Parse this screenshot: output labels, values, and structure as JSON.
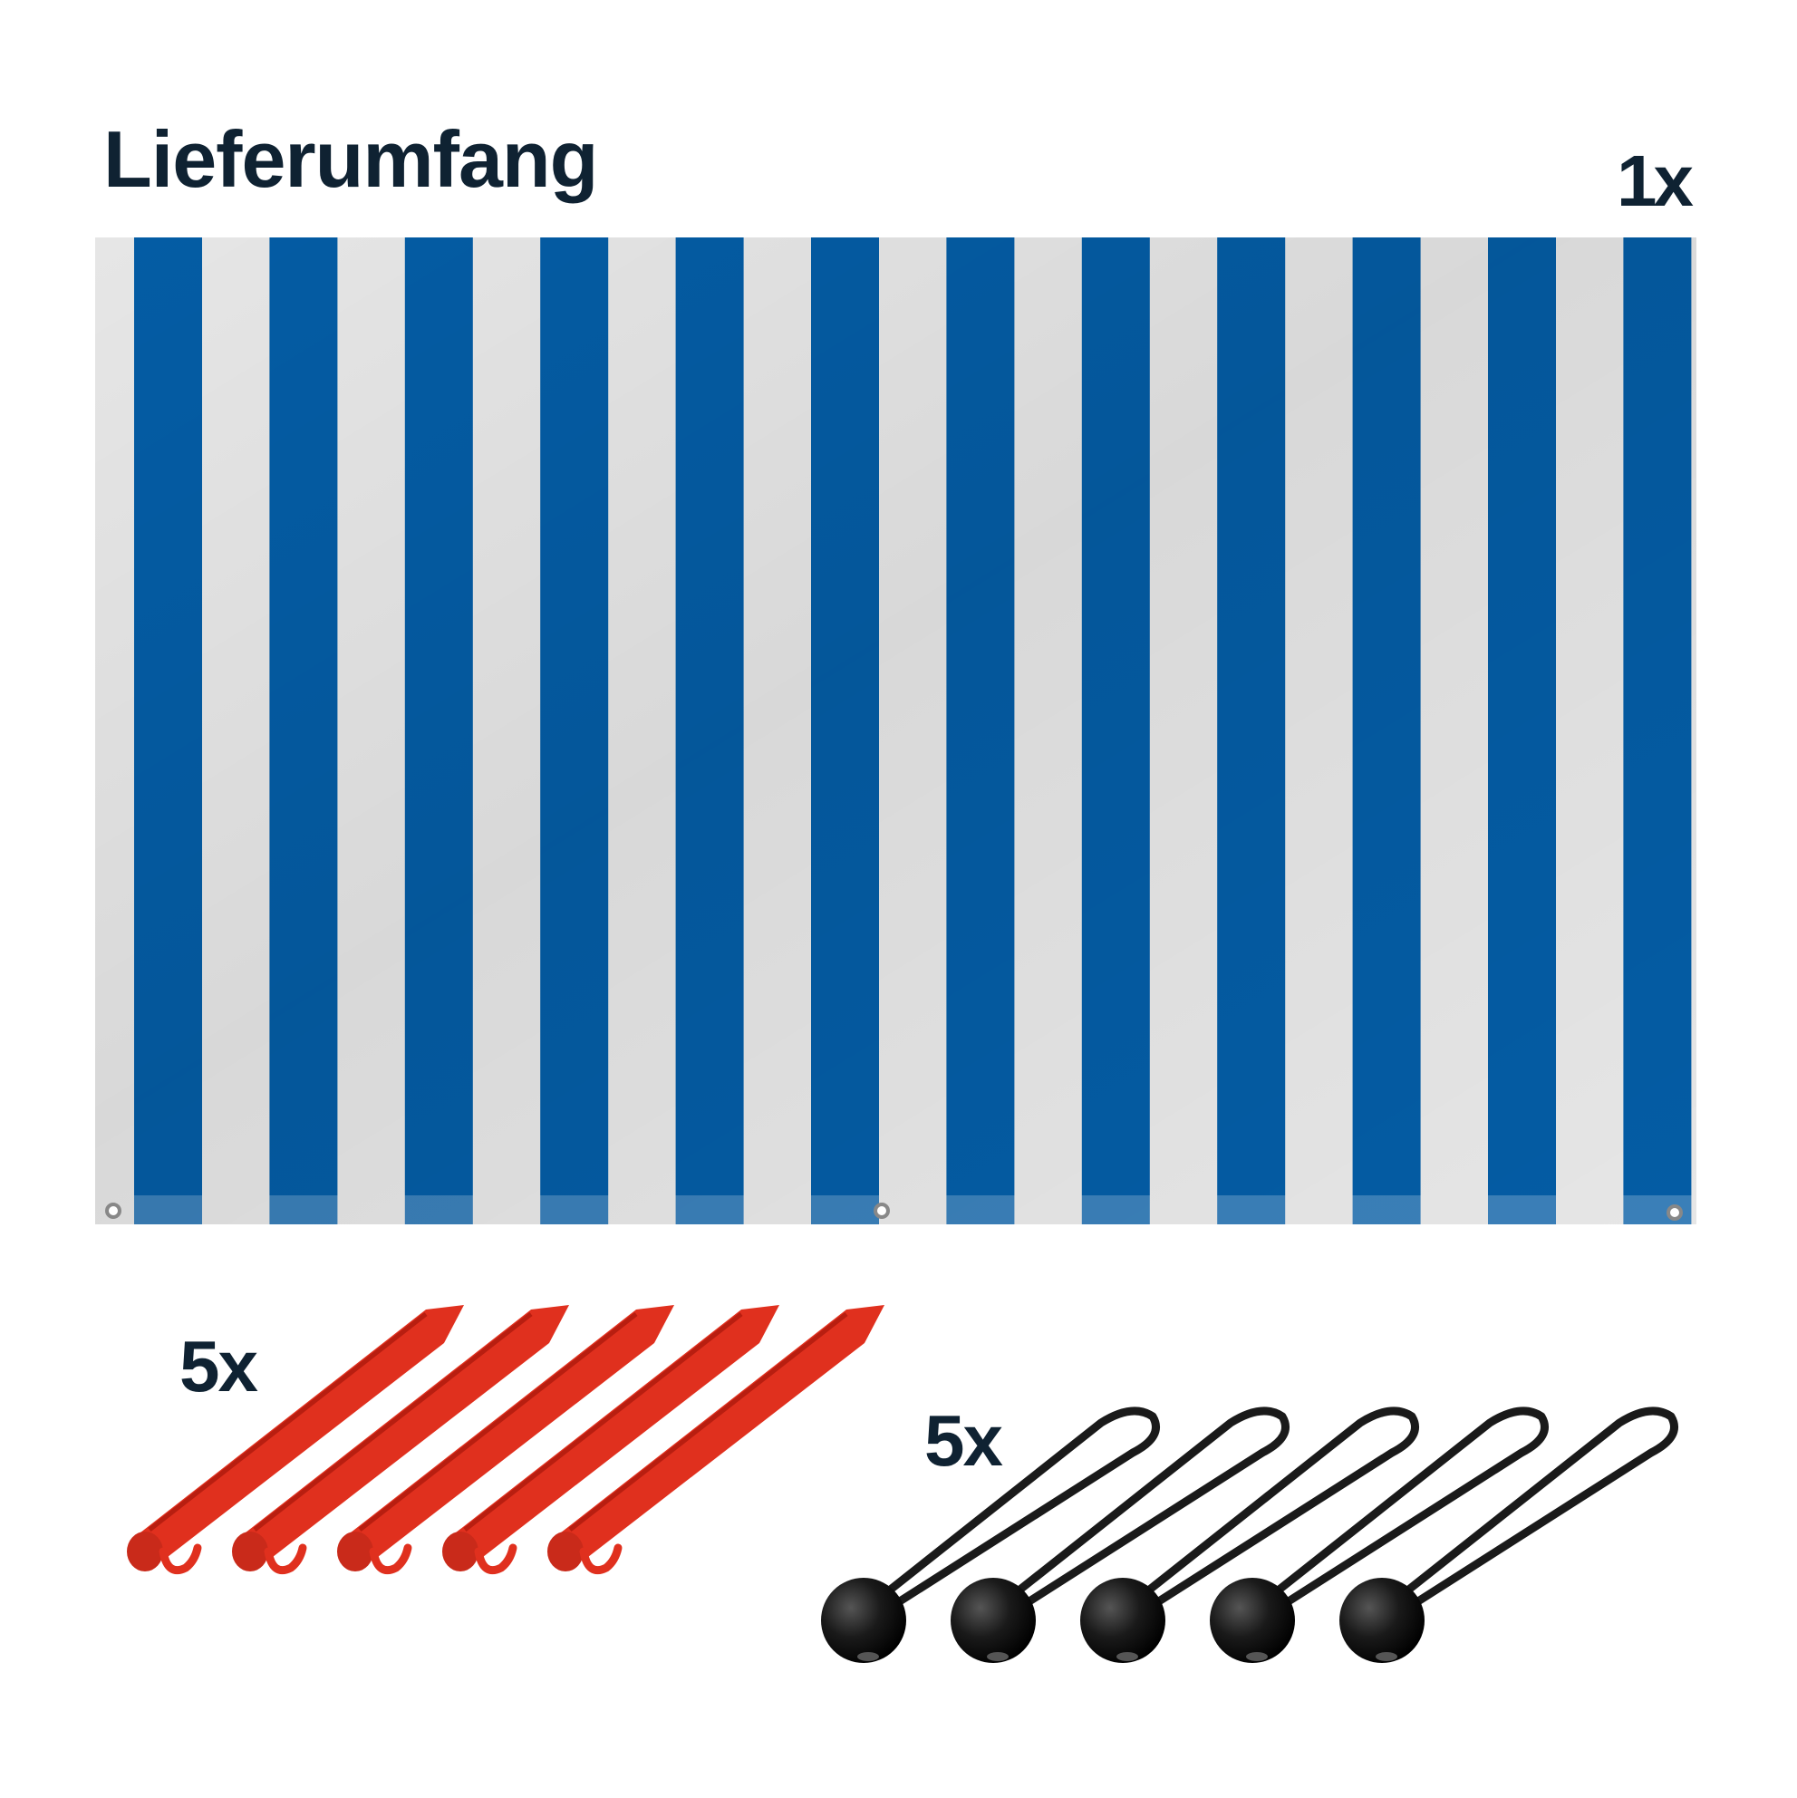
{
  "title": "Lieferumfang",
  "items": [
    {
      "name": "flag-banner",
      "quantity": "1x",
      "stripe_count": 12
    },
    {
      "name": "tent-pegs",
      "quantity": "5x",
      "count": 5
    },
    {
      "name": "ball-bungees",
      "quantity": "5x",
      "count": 5
    }
  ],
  "colors": {
    "text": "#0f2232",
    "stripe_blue": "#045ca4",
    "stripe_white": "#e6e6e6",
    "hem_blue": "#3a7fb8",
    "peg_red": "#e0301e",
    "bungee_black": "#1a1a1a"
  }
}
